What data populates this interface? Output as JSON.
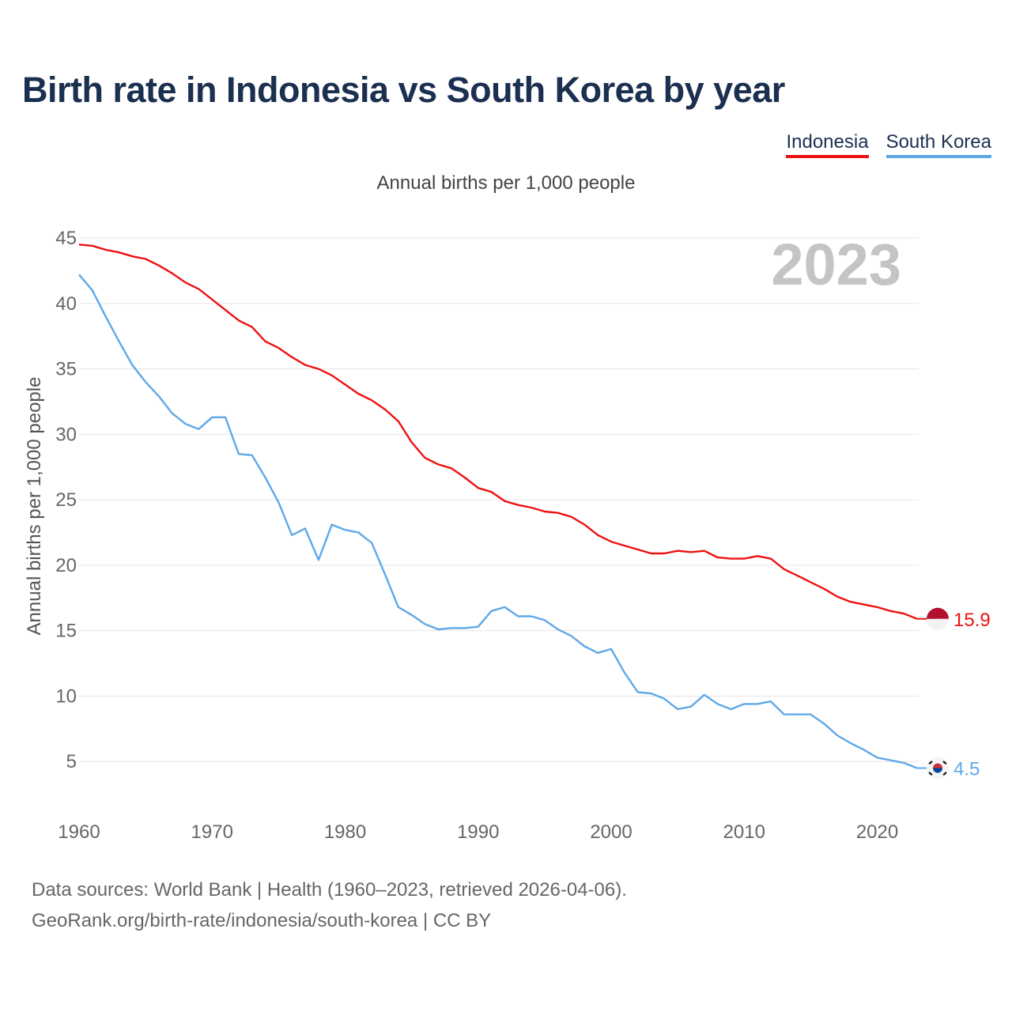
{
  "title": "Birth rate in Indonesia vs South Korea by year",
  "legend": [
    {
      "name": "Indonesia",
      "color": "#ee1111"
    },
    {
      "name": "South Korea",
      "color": "#5fa8e8"
    }
  ],
  "subtitle": "Annual births per 1,000 people",
  "footer": {
    "line1": "Data sources: World Bank | Health (1960–2023, retrieved 2026-04-06).",
    "line2": "GeoRank.org/birth-rate/indonesia/south-korea | CC BY"
  },
  "chart_data": {
    "type": "line",
    "title": "Birth rate in Indonesia vs South Korea by year",
    "ylabel": "Annual births per 1,000 people",
    "xlabel": "",
    "year_watermark": "2023",
    "ylim": [
      0,
      45
    ],
    "xlim": [
      1960,
      2023
    ],
    "yticks": [
      5,
      10,
      15,
      20,
      25,
      30,
      35,
      40,
      45
    ],
    "xticks": [
      1960,
      1970,
      1980,
      1990,
      2000,
      2010,
      2020
    ],
    "grid": true,
    "x": [
      1960,
      1961,
      1962,
      1963,
      1964,
      1965,
      1966,
      1967,
      1968,
      1969,
      1970,
      1971,
      1972,
      1973,
      1974,
      1975,
      1976,
      1977,
      1978,
      1979,
      1980,
      1981,
      1982,
      1983,
      1984,
      1985,
      1986,
      1987,
      1988,
      1989,
      1990,
      1991,
      1992,
      1993,
      1994,
      1995,
      1996,
      1997,
      1998,
      1999,
      2000,
      2001,
      2002,
      2003,
      2004,
      2005,
      2006,
      2007,
      2008,
      2009,
      2010,
      2011,
      2012,
      2013,
      2014,
      2015,
      2016,
      2017,
      2018,
      2019,
      2020,
      2021,
      2022,
      2023
    ],
    "series": [
      {
        "name": "Indonesia",
        "color": "#ee1111",
        "end_label": "15.9",
        "flag": "indonesia-flag",
        "values": [
          44.5,
          44.4,
          44.1,
          43.9,
          43.6,
          43.4,
          42.9,
          42.3,
          41.6,
          41.1,
          40.3,
          39.5,
          38.7,
          38.2,
          37.1,
          36.6,
          35.9,
          35.3,
          35.0,
          34.5,
          33.8,
          33.1,
          32.6,
          31.9,
          31.0,
          29.4,
          28.2,
          27.7,
          27.4,
          26.7,
          25.9,
          25.6,
          24.9,
          24.6,
          24.4,
          24.1,
          24.0,
          23.7,
          23.1,
          22.3,
          21.8,
          21.5,
          21.2,
          20.9,
          20.9,
          21.1,
          21.0,
          21.1,
          20.6,
          20.5,
          20.5,
          20.7,
          20.5,
          19.7,
          19.2,
          18.7,
          18.2,
          17.6,
          17.2,
          17.0,
          16.8,
          16.5,
          16.3,
          15.9
        ]
      },
      {
        "name": "South Korea",
        "color": "#5fa8e8",
        "end_label": "4.5",
        "flag": "south-korea-flag",
        "values": [
          42.2,
          41.0,
          39.0,
          37.1,
          35.3,
          34.0,
          32.9,
          31.6,
          30.8,
          30.4,
          31.3,
          31.3,
          28.5,
          28.4,
          26.7,
          24.8,
          22.3,
          22.8,
          20.4,
          23.1,
          22.7,
          22.5,
          21.7,
          19.3,
          16.8,
          16.2,
          15.5,
          15.1,
          15.2,
          15.2,
          15.3,
          16.5,
          16.8,
          16.1,
          16.1,
          15.8,
          15.1,
          14.6,
          13.8,
          13.3,
          13.6,
          11.8,
          10.3,
          10.2,
          9.8,
          9.0,
          9.2,
          10.1,
          9.4,
          9.0,
          9.4,
          9.4,
          9.6,
          8.6,
          8.6,
          8.6,
          7.9,
          7.0,
          6.4,
          5.9,
          5.3,
          5.1,
          4.9,
          4.5
        ]
      }
    ]
  }
}
